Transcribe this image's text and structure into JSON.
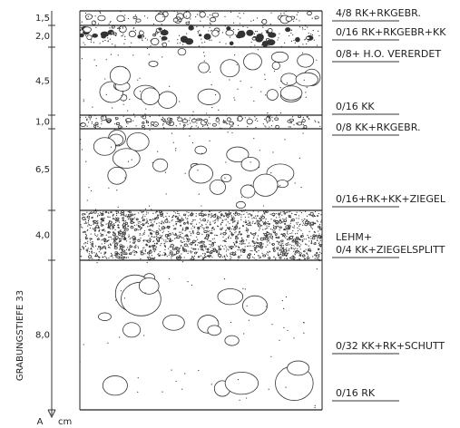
{
  "scale": {
    "depths": [
      "1,5",
      "2,0",
      "4,5",
      "1,0",
      "6,5",
      "4,0",
      "8,0"
    ],
    "axis_label": "GRABUNGSTIEFE 33",
    "origin": "A",
    "unit": "cm"
  },
  "notes": [
    "4/8  RK+RKGEBR.",
    "0/16  RK+RKGEBR+KK",
    "0/8+  H.O.   VERERDET",
    "0/16  KK",
    "0/8  KK+RKGEBR.",
    "0/16+RK+KK+ZIEGEL",
    "LEHM+",
    "0/4  KK+ZIEGELSPLITT",
    "0/32  KK+RK+SCHUTT",
    "0/16  RK"
  ]
}
